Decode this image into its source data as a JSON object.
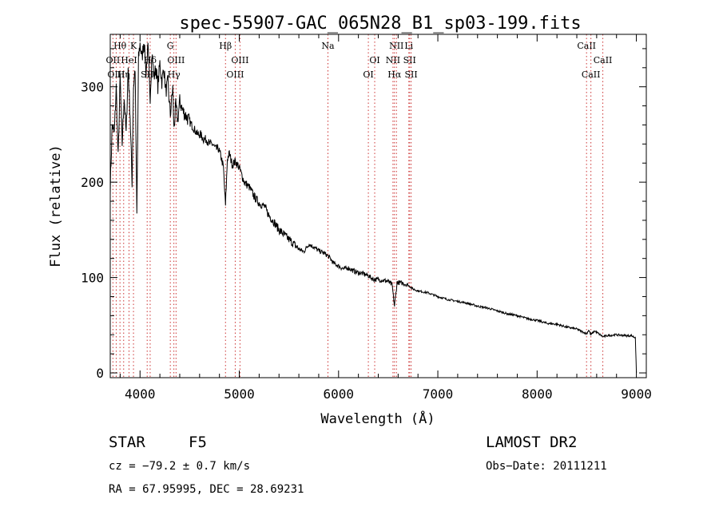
{
  "chart_data": {
    "type": "line",
    "title": "spec-55907-GAC_065N28_B1_sp03-199.fits",
    "xlabel": "Wavelength (Å)",
    "ylabel": "Flux (relative)",
    "xlim": [
      3700,
      9100
    ],
    "ylim": [
      -5,
      355
    ],
    "xticks": [
      4000,
      5000,
      6000,
      7000,
      8000,
      9000
    ],
    "yticks": [
      0,
      100,
      200,
      300
    ],
    "grid": false,
    "line_color": "#000000",
    "marker_color": "#cc3333",
    "markers": [
      {
        "label": "Hθ",
        "x": 3798,
        "row": 0
      },
      {
        "label": "K",
        "x": 3934,
        "row": 0
      },
      {
        "label": "OII",
        "x": 3727,
        "row": 1
      },
      {
        "label": "HeI",
        "x": 3889,
        "row": 1
      },
      {
        "label": "OIII",
        "x": 3760,
        "row": 2
      },
      {
        "label": "Hη",
        "x": 3835,
        "row": 2
      },
      {
        "label": "Hδ",
        "x": 4102,
        "row": 1
      },
      {
        "label": "SII",
        "x": 4072,
        "row": 2
      },
      {
        "label": "G",
        "x": 4305,
        "row": 0
      },
      {
        "label": "OIII",
        "x": 4363,
        "row": 1
      },
      {
        "label": "Hγ",
        "x": 4341,
        "row": 2
      },
      {
        "label": "Hβ",
        "x": 4861,
        "row": 0
      },
      {
        "label": "OIII",
        "x": 5007,
        "row": 1
      },
      {
        "label": "OIII",
        "x": 4959,
        "row": 2
      },
      {
        "label": "Na",
        "x": 5893,
        "row": 0
      },
      {
        "label": "OI",
        "x": 6364,
        "row": 1
      },
      {
        "label": "OI",
        "x": 6300,
        "row": 2
      },
      {
        "label": "NII",
        "x": 6583,
        "row": 0
      },
      {
        "label": "Li",
        "x": 6708,
        "row": 0
      },
      {
        "label": "NII",
        "x": 6548,
        "row": 1
      },
      {
        "label": "SII",
        "x": 6716,
        "row": 1
      },
      {
        "label": "Hα",
        "x": 6563,
        "row": 2
      },
      {
        "label": "SII",
        "x": 6731,
        "row": 2
      },
      {
        "label": "CaII",
        "x": 8498,
        "row": 0
      },
      {
        "label": "CaII",
        "x": 8662,
        "row": 1
      },
      {
        "label": "CaII",
        "x": 8542,
        "row": 2
      }
    ],
    "spectrum": {
      "x": [
        3700,
        3720,
        3740,
        3760,
        3780,
        3800,
        3820,
        3840,
        3860,
        3880,
        3900,
        3920,
        3934,
        3950,
        3968,
        3985,
        4000,
        4020,
        4040,
        4060,
        4080,
        4102,
        4120,
        4140,
        4160,
        4180,
        4200,
        4220,
        4240,
        4260,
        4280,
        4305,
        4330,
        4341,
        4360,
        4380,
        4400,
        4430,
        4460,
        4490,
        4520,
        4550,
        4580,
        4610,
        4640,
        4670,
        4700,
        4730,
        4760,
        4790,
        4820,
        4840,
        4861,
        4880,
        4900,
        4930,
        4960,
        5000,
        5050,
        5100,
        5150,
        5200,
        5250,
        5300,
        5350,
        5400,
        5450,
        5500,
        5550,
        5600,
        5650,
        5700,
        5750,
        5800,
        5850,
        5900,
        5950,
        6000,
        6050,
        6100,
        6150,
        6200,
        6250,
        6300,
        6350,
        6400,
        6450,
        6500,
        6540,
        6563,
        6590,
        6650,
        6700,
        6750,
        6800,
        6900,
        7000,
        7100,
        7200,
        7300,
        7400,
        7500,
        7600,
        7700,
        7800,
        7900,
        8000,
        8100,
        8200,
        8300,
        8400,
        8498,
        8520,
        8542,
        8580,
        8662,
        8700,
        8800,
        8900,
        8950,
        8990,
        9000
      ],
      "y": [
        195,
        260,
        250,
        300,
        225,
        310,
        240,
        290,
        250,
        320,
        270,
        200,
        300,
        320,
        165,
        330,
        345,
        330,
        350,
        315,
        340,
        290,
        335,
        310,
        320,
        300,
        325,
        305,
        320,
        295,
        305,
        270,
        300,
        255,
        280,
        265,
        285,
        275,
        270,
        265,
        260,
        255,
        250,
        250,
        245,
        245,
        240,
        240,
        235,
        235,
        225,
        215,
        175,
        225,
        230,
        218,
        222,
        215,
        200,
        195,
        185,
        178,
        175,
        165,
        158,
        150,
        145,
        140,
        135,
        130,
        127,
        135,
        132,
        128,
        126,
        122,
        115,
        112,
        109,
        110,
        107,
        105,
        104,
        102,
        98,
        98,
        97,
        96,
        92,
        70,
        95,
        94,
        92,
        88,
        86,
        84,
        80,
        77,
        75,
        73,
        70,
        68,
        65,
        62,
        60,
        57,
        55,
        52,
        51,
        48,
        46,
        41,
        45,
        40,
        44,
        38,
        39,
        40,
        39,
        39,
        37,
        0
      ]
    }
  },
  "info": {
    "object_class": "STAR",
    "subclass": "F5",
    "survey": "LAMOST DR2",
    "redshift": "cz = −79.2 ± 0.7 km/s",
    "obs_date": "Obs−Date: 20111211",
    "coords": "RA =  67.95995, DEC =  28.69231"
  }
}
